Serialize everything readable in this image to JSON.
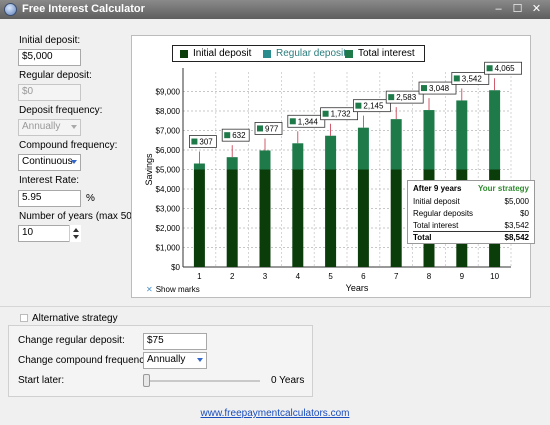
{
  "window": {
    "title": "Free Interest Calculator",
    "minimize_glyph": "–",
    "maximize_glyph": "☐",
    "close_glyph": "✕"
  },
  "form": {
    "initial_deposit_label": "Initial deposit:",
    "initial_deposit_value": "$5,000",
    "regular_deposit_label": "Regular deposit:",
    "regular_deposit_value": "$0",
    "deposit_frequency_label": "Deposit frequency:",
    "deposit_frequency_value": "Annually",
    "compound_frequency_label": "Compound frequency:",
    "compound_frequency_value": "Continuous",
    "interest_rate_label": "Interest Rate:",
    "interest_rate_value": "5.95",
    "interest_rate_unit": "%",
    "years_label": "Number of years (max 50):",
    "years_value": "10"
  },
  "chart_data": {
    "type": "bar",
    "stacked": true,
    "categories": [
      "1",
      "2",
      "3",
      "4",
      "5",
      "6",
      "7",
      "8",
      "9",
      "10"
    ],
    "series": [
      {
        "name": "Initial deposit",
        "color": "#0b3d0b",
        "values": [
          5000,
          5000,
          5000,
          5000,
          5000,
          5000,
          5000,
          5000,
          5000,
          5000
        ]
      },
      {
        "name": "Regular deposits",
        "color": "#2a8c8c",
        "values": [
          0,
          0,
          0,
          0,
          0,
          0,
          0,
          0,
          0,
          0
        ]
      },
      {
        "name": "Total interest",
        "color": "#1f7a4a",
        "values": [
          307,
          632,
          977,
          1344,
          1732,
          2145,
          2583,
          3048,
          3542,
          4065
        ]
      }
    ],
    "data_labels": [
      "307",
      "632",
      "977",
      "1,344",
      "1,732",
      "2,145",
      "2,583",
      "3,048",
      "3,542",
      "4,065"
    ],
    "xlabel": "Years",
    "ylabel": "Savings",
    "ylim": [
      0,
      10000
    ],
    "yticks": [
      "$0",
      "$1,000",
      "$2,000",
      "$3,000",
      "$4,000",
      "$5,000",
      "$6,000",
      "$7,000",
      "$8,000",
      "$9,000"
    ],
    "grid": true,
    "legend_position": "top"
  },
  "tooltip": {
    "title": "After 9 years",
    "strategy": "Your strategy",
    "rows": [
      {
        "label": "Initial deposit",
        "value": "$5,000"
      },
      {
        "label": "Regular deposits",
        "value": "$0"
      },
      {
        "label": "Total interest",
        "value": "$3,542"
      }
    ],
    "total_label": "Total",
    "total_value": "$8,542"
  },
  "show_marks_label": "Show marks",
  "alternative": {
    "checkbox_label": "Alternative strategy",
    "change_regular_label": "Change regular deposit:",
    "change_regular_value": "$75",
    "change_compound_label": "Change compound frequency:",
    "change_compound_value": "Annually",
    "start_later_label": "Start later:",
    "start_later_value": "0 Years"
  },
  "footer_link": "www.freepaymentcalculators.com"
}
